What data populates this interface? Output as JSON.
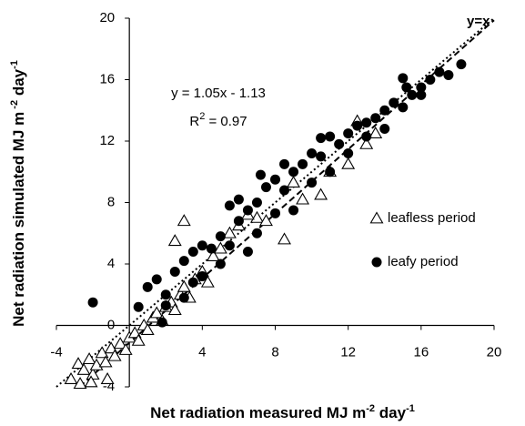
{
  "chart_data": {
    "type": "scatter",
    "xlabel": [
      {
        "text": "Net radiation measured MJ m"
      },
      {
        "text": "-2",
        "sup": true
      },
      {
        "text": " day"
      },
      {
        "text": "-1",
        "sup": true
      }
    ],
    "ylabel": [
      {
        "text": "Net radiation simulated MJ m"
      },
      {
        "text": " -2",
        "sup": true
      },
      {
        "text": " day"
      },
      {
        "text": "-1",
        "sup": true
      }
    ],
    "xlim": [
      -4,
      20
    ],
    "ylim": [
      -4,
      20
    ],
    "xticks": [
      -4,
      4,
      8,
      12,
      16,
      20
    ],
    "yticks": [
      -4,
      0,
      4,
      8,
      12,
      16,
      20
    ],
    "equation": "y = 1.05x - 1.13",
    "r2": [
      {
        "text": "R"
      },
      {
        "text": "2",
        "sup": true
      },
      {
        "text": " = 0.97"
      }
    ],
    "fit_line": {
      "slope": 1.05,
      "intercept": -1.13
    },
    "identity_line": {
      "label": "y=x"
    },
    "series": [
      {
        "name": "leafless period",
        "marker": "triangle",
        "color": "#000000",
        "x": [
          -2.8,
          -2.5,
          -2.2,
          -2,
          -1.8,
          -1.5,
          -1.3,
          -1,
          -0.8,
          -0.5,
          -0.2,
          0,
          0.3,
          0.5,
          0.8,
          1,
          1.3,
          1.5,
          1.8,
          2,
          2.3,
          2.5,
          2.8,
          3,
          3.3,
          3.6,
          4,
          4.3,
          4.6,
          3,
          2.5,
          5,
          5.5,
          6,
          7,
          7.5,
          8.5,
          9,
          10.5,
          11,
          12.5,
          12,
          13,
          13.5,
          9.5,
          6.5,
          -3.2,
          -2.7,
          -1.2,
          -2.1
        ],
        "y": [
          -2.5,
          -2.9,
          -2.2,
          -3.2,
          -2.6,
          -1.8,
          -2.4,
          -1.5,
          -2,
          -1.2,
          -1.6,
          -0.8,
          -0.5,
          -1,
          0,
          -0.3,
          0.5,
          0.8,
          0.3,
          1.2,
          1.5,
          1,
          2,
          2.5,
          1.8,
          3,
          3.5,
          2.8,
          4.5,
          6.8,
          5.5,
          5,
          6,
          6.5,
          7,
          6.8,
          5.6,
          9.3,
          8.5,
          10,
          13.3,
          10.5,
          11.8,
          12.5,
          8.2,
          7.2,
          -3.5,
          -3.8,
          -3.5,
          -3.7
        ]
      },
      {
        "name": "leafy period",
        "marker": "circle",
        "color": "#000000",
        "x": [
          -2,
          0.5,
          1,
          1.5,
          2,
          2.5,
          3,
          3.5,
          4,
          4.5,
          5,
          5.5,
          6,
          6.5,
          5.5,
          6,
          7,
          7.5,
          8,
          8.5,
          9,
          9.5,
          10,
          10.5,
          11,
          11.5,
          12,
          12.5,
          13,
          13.5,
          14,
          14.5,
          15,
          15,
          15.5,
          16,
          16.5,
          17,
          17.5,
          18.2,
          16,
          14,
          12,
          10,
          8,
          7,
          4,
          2,
          3,
          9,
          11,
          13,
          15.2,
          6.5,
          5,
          3.5,
          1.8,
          8.5,
          7.2,
          10.5
        ],
        "y": [
          1.5,
          1.2,
          2.5,
          3,
          2,
          3.5,
          4.2,
          4.8,
          5.2,
          5,
          5.8,
          5.2,
          6.8,
          7.5,
          7.8,
          8.2,
          8,
          9,
          9.5,
          8.8,
          10,
          10.5,
          11.2,
          11,
          12.3,
          11.8,
          12.5,
          13,
          12.3,
          13.5,
          14,
          14.5,
          14.2,
          16.1,
          15,
          15.5,
          16,
          16.5,
          16.3,
          17,
          15,
          12.8,
          11.2,
          9.3,
          7.3,
          6,
          3.2,
          1.3,
          1.8,
          7.5,
          10,
          13.2,
          15.5,
          4.8,
          4,
          2.8,
          0.2,
          10.5,
          9.8,
          12.2
        ]
      }
    ]
  }
}
